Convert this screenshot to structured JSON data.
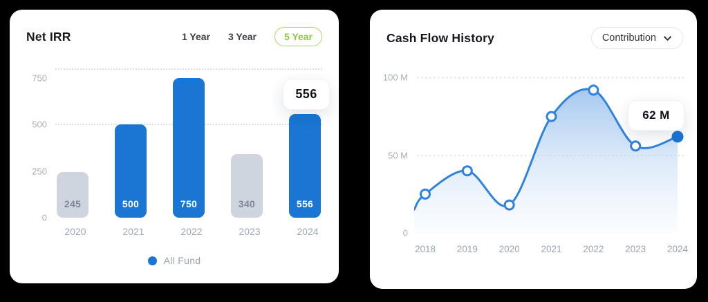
{
  "left_card": {
    "title": "Net IRR",
    "tabs": [
      {
        "label": "1 Year",
        "active": false
      },
      {
        "label": "3 Year",
        "active": false
      },
      {
        "label": "5 Year",
        "active": true
      }
    ],
    "tooltip": "556",
    "legend_label": "All Fund"
  },
  "right_card": {
    "title": "Cash Flow History",
    "dropdown_selected": "Contribution",
    "tooltip": "62 M"
  },
  "chart_data": [
    {
      "type": "bar",
      "title": "Net IRR",
      "categories": [
        "2020",
        "2021",
        "2022",
        "2023",
        "2024"
      ],
      "series": [
        {
          "name": "All Fund",
          "values": [
            245,
            500,
            750,
            340,
            556
          ]
        }
      ],
      "emphasis": [
        false,
        true,
        true,
        false,
        true
      ],
      "yticks": [
        {
          "label": "750",
          "value": 750
        },
        {
          "label": "500",
          "value": 500
        },
        {
          "label": "250",
          "value": 250
        },
        {
          "label": "0",
          "value": 0
        }
      ],
      "ylim": [
        0,
        800
      ],
      "gridline_values": [
        800,
        500
      ],
      "grid": "dotted-horizontal",
      "legend": [
        "All Fund"
      ],
      "legend_position": "bottom",
      "callout": {
        "category": "2024",
        "label": "556"
      }
    },
    {
      "type": "area",
      "title": "Cash Flow History",
      "x": [
        "2018",
        "2019",
        "2020",
        "2021",
        "2022",
        "2023",
        "2024"
      ],
      "values": [
        25,
        40,
        18,
        75,
        92,
        56,
        62
      ],
      "lead_in_value": 15,
      "unit": "M",
      "yticks": [
        {
          "label": "100 M",
          "value": 100
        },
        {
          "label": "50 M",
          "value": 50
        },
        {
          "label": "0",
          "value": 0
        }
      ],
      "ylim": [
        0,
        106
      ],
      "gridline_values": [
        100,
        50
      ],
      "grid": "dotted-horizontal",
      "highlight_index": 6,
      "callout": {
        "x": "2024",
        "label": "62 M"
      }
    }
  ],
  "colors": {
    "accent_blue": "#1a76d2",
    "line_blue": "#2f82dd",
    "muted_bar": "#cfd5df",
    "green": "#8dc63f",
    "grid": "#ccd1d9",
    "axis_text": "#a7aeba",
    "fill_top": "#9cc2ee",
    "fill_bottom": "#f2f8fe",
    "card": "#ffffff",
    "background": "#000000"
  }
}
